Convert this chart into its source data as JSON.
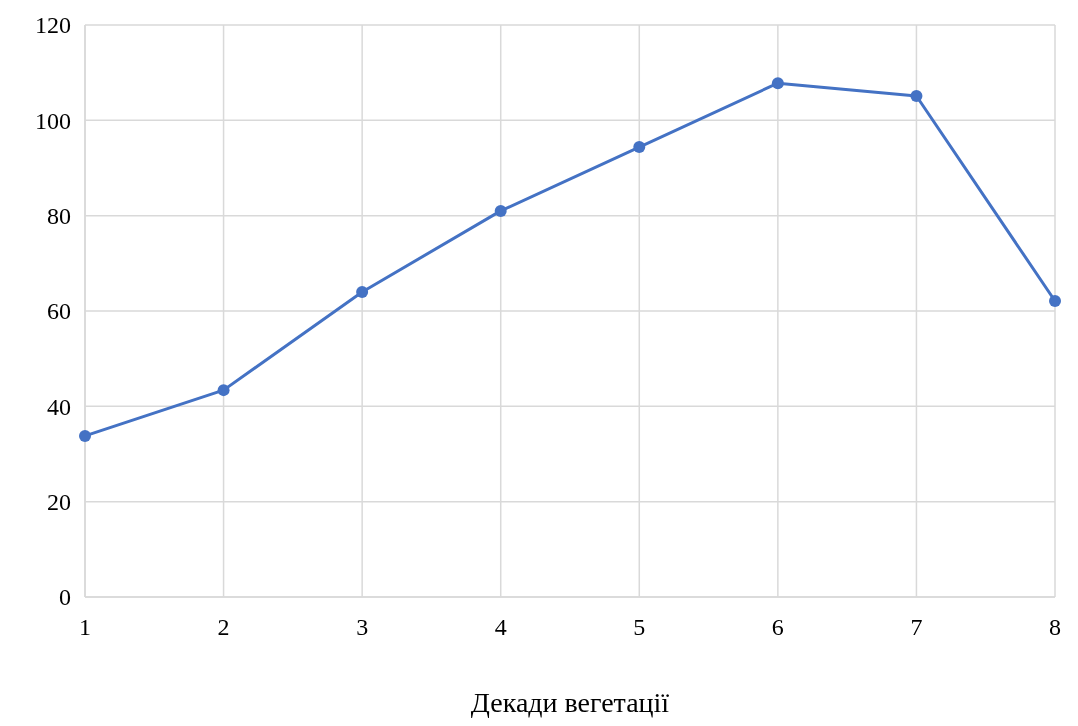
{
  "chart_data": {
    "type": "line",
    "xlabel": "Декади вегетації",
    "x": [
      1,
      2,
      3,
      4,
      5,
      6,
      7,
      8
    ],
    "series": [
      {
        "color": "#4472c4",
        "values": [
          33.8,
          43.4,
          64.0,
          81.0,
          94.4,
          107.8,
          105.1,
          62.1
        ]
      }
    ],
    "xlim": [
      1,
      8
    ],
    "xticks": [
      1,
      2,
      3,
      4,
      5,
      6,
      7,
      8
    ],
    "ylim": [
      0,
      120
    ],
    "yticks": [
      0,
      20,
      40,
      60,
      80,
      100,
      120
    ],
    "grid": true,
    "marker": "circle",
    "line_style": "solid"
  }
}
